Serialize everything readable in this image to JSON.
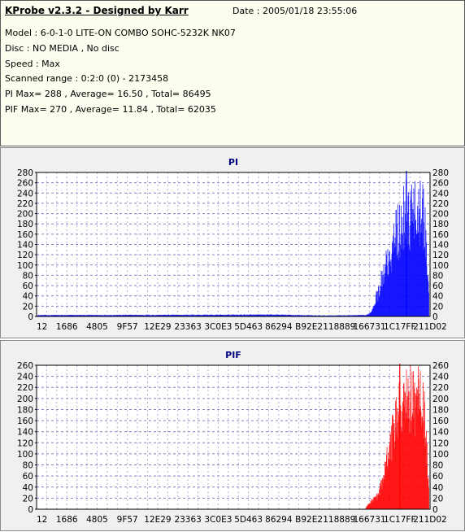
{
  "header": {
    "title": "KProbe v2.3.2 - Designed by Karr",
    "date": "Date : 2005/01/18 23:55:06",
    "lines": [
      "Model : 6-0-1-0 LITE-ON COMBO SOHC-5232K NK07",
      "Disc : NO MEDIA , No disc",
      "Speed : Max",
      "Scanned range : 0:2:0 (0) - 2173458",
      "PI Max= 288 , Average= 16.50 , Total= 86495",
      "PIF Max= 270 , Average= 11.84 , Total= 62035"
    ]
  },
  "chart_data": [
    {
      "type": "bar",
      "title": "PI",
      "color": "#0000ff",
      "ylim": [
        0,
        280
      ],
      "yticks": [
        0,
        20,
        40,
        60,
        80,
        100,
        120,
        140,
        160,
        180,
        200,
        220,
        240,
        260,
        280
      ],
      "xticks": [
        "12",
        "1686",
        "4805",
        "9F57",
        "12E29",
        "23363",
        "3C0E3",
        "5D463",
        "86294",
        "B92E2",
        "118889",
        "166731",
        "1C17FF",
        "211D02"
      ],
      "xlim": [
        0,
        13
      ],
      "grid": true,
      "profile_x": [
        0,
        8,
        9.4,
        10.9,
        11.05,
        11.3,
        11.7,
        12.0,
        12.2,
        12.35,
        12.55,
        12.8,
        13.0
      ],
      "profile_y": [
        3,
        4,
        2,
        3,
        10,
        60,
        150,
        205,
        240,
        230,
        240,
        230,
        0
      ],
      "peak_x": 12.22,
      "peak_y": 288
    },
    {
      "type": "bar",
      "title": "PIF",
      "color": "#ff0000",
      "ylim": [
        0,
        260
      ],
      "yticks": [
        0,
        20,
        40,
        60,
        80,
        100,
        120,
        140,
        160,
        180,
        200,
        220,
        240,
        260
      ],
      "xticks": [
        "12",
        "1686",
        "4805",
        "9F57",
        "12E29",
        "23363",
        "3C0E3",
        "5D463",
        "86294",
        "B92E2",
        "118889",
        "166731",
        "1C17FF",
        "211D02"
      ],
      "xlim": [
        0,
        13
      ],
      "grid": true,
      "profile_x": [
        0,
        10.85,
        11.0,
        11.3,
        11.6,
        11.9,
        12.1,
        12.3,
        12.55,
        12.8,
        13.0
      ],
      "profile_y": [
        0,
        0,
        15,
        30,
        110,
        200,
        250,
        245,
        235,
        225,
        0
      ],
      "peak_x": 12.0,
      "peak_y": 270
    }
  ]
}
